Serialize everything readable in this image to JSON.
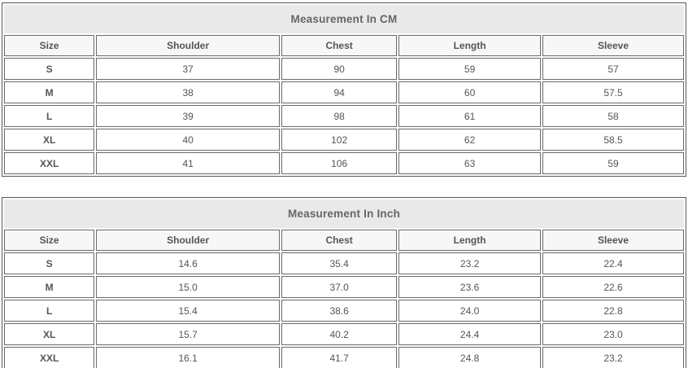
{
  "columns": [
    "Size",
    "Shoulder",
    "Chest",
    "Length",
    "Sleeve"
  ],
  "colors": {
    "title_background": "#e9e9e9",
    "header_background": "#f7f7f7",
    "cell_border": "#6a6a6a",
    "outer_border": "#585858",
    "text": "#555555"
  },
  "tables": [
    {
      "title": "Measurement In CM",
      "rows": [
        [
          "S",
          "37",
          "90",
          "59",
          "57"
        ],
        [
          "M",
          "38",
          "94",
          "60",
          "57.5"
        ],
        [
          "L",
          "39",
          "98",
          "61",
          "58"
        ],
        [
          "XL",
          "40",
          "102",
          "62",
          "58.5"
        ],
        [
          "XXL",
          "41",
          "106",
          "63",
          "59"
        ]
      ]
    },
    {
      "title": "Measurement In Inch",
      "rows": [
        [
          "S",
          "14.6",
          "35.4",
          "23.2",
          "22.4"
        ],
        [
          "M",
          "15.0",
          "37.0",
          "23.6",
          "22.6"
        ],
        [
          "L",
          "15.4",
          "38.6",
          "24.0",
          "22.8"
        ],
        [
          "XL",
          "15.7",
          "40.2",
          "24.4",
          "23.0"
        ],
        [
          "XXL",
          "16.1",
          "41.7",
          "24.8",
          "23.2"
        ]
      ]
    }
  ]
}
